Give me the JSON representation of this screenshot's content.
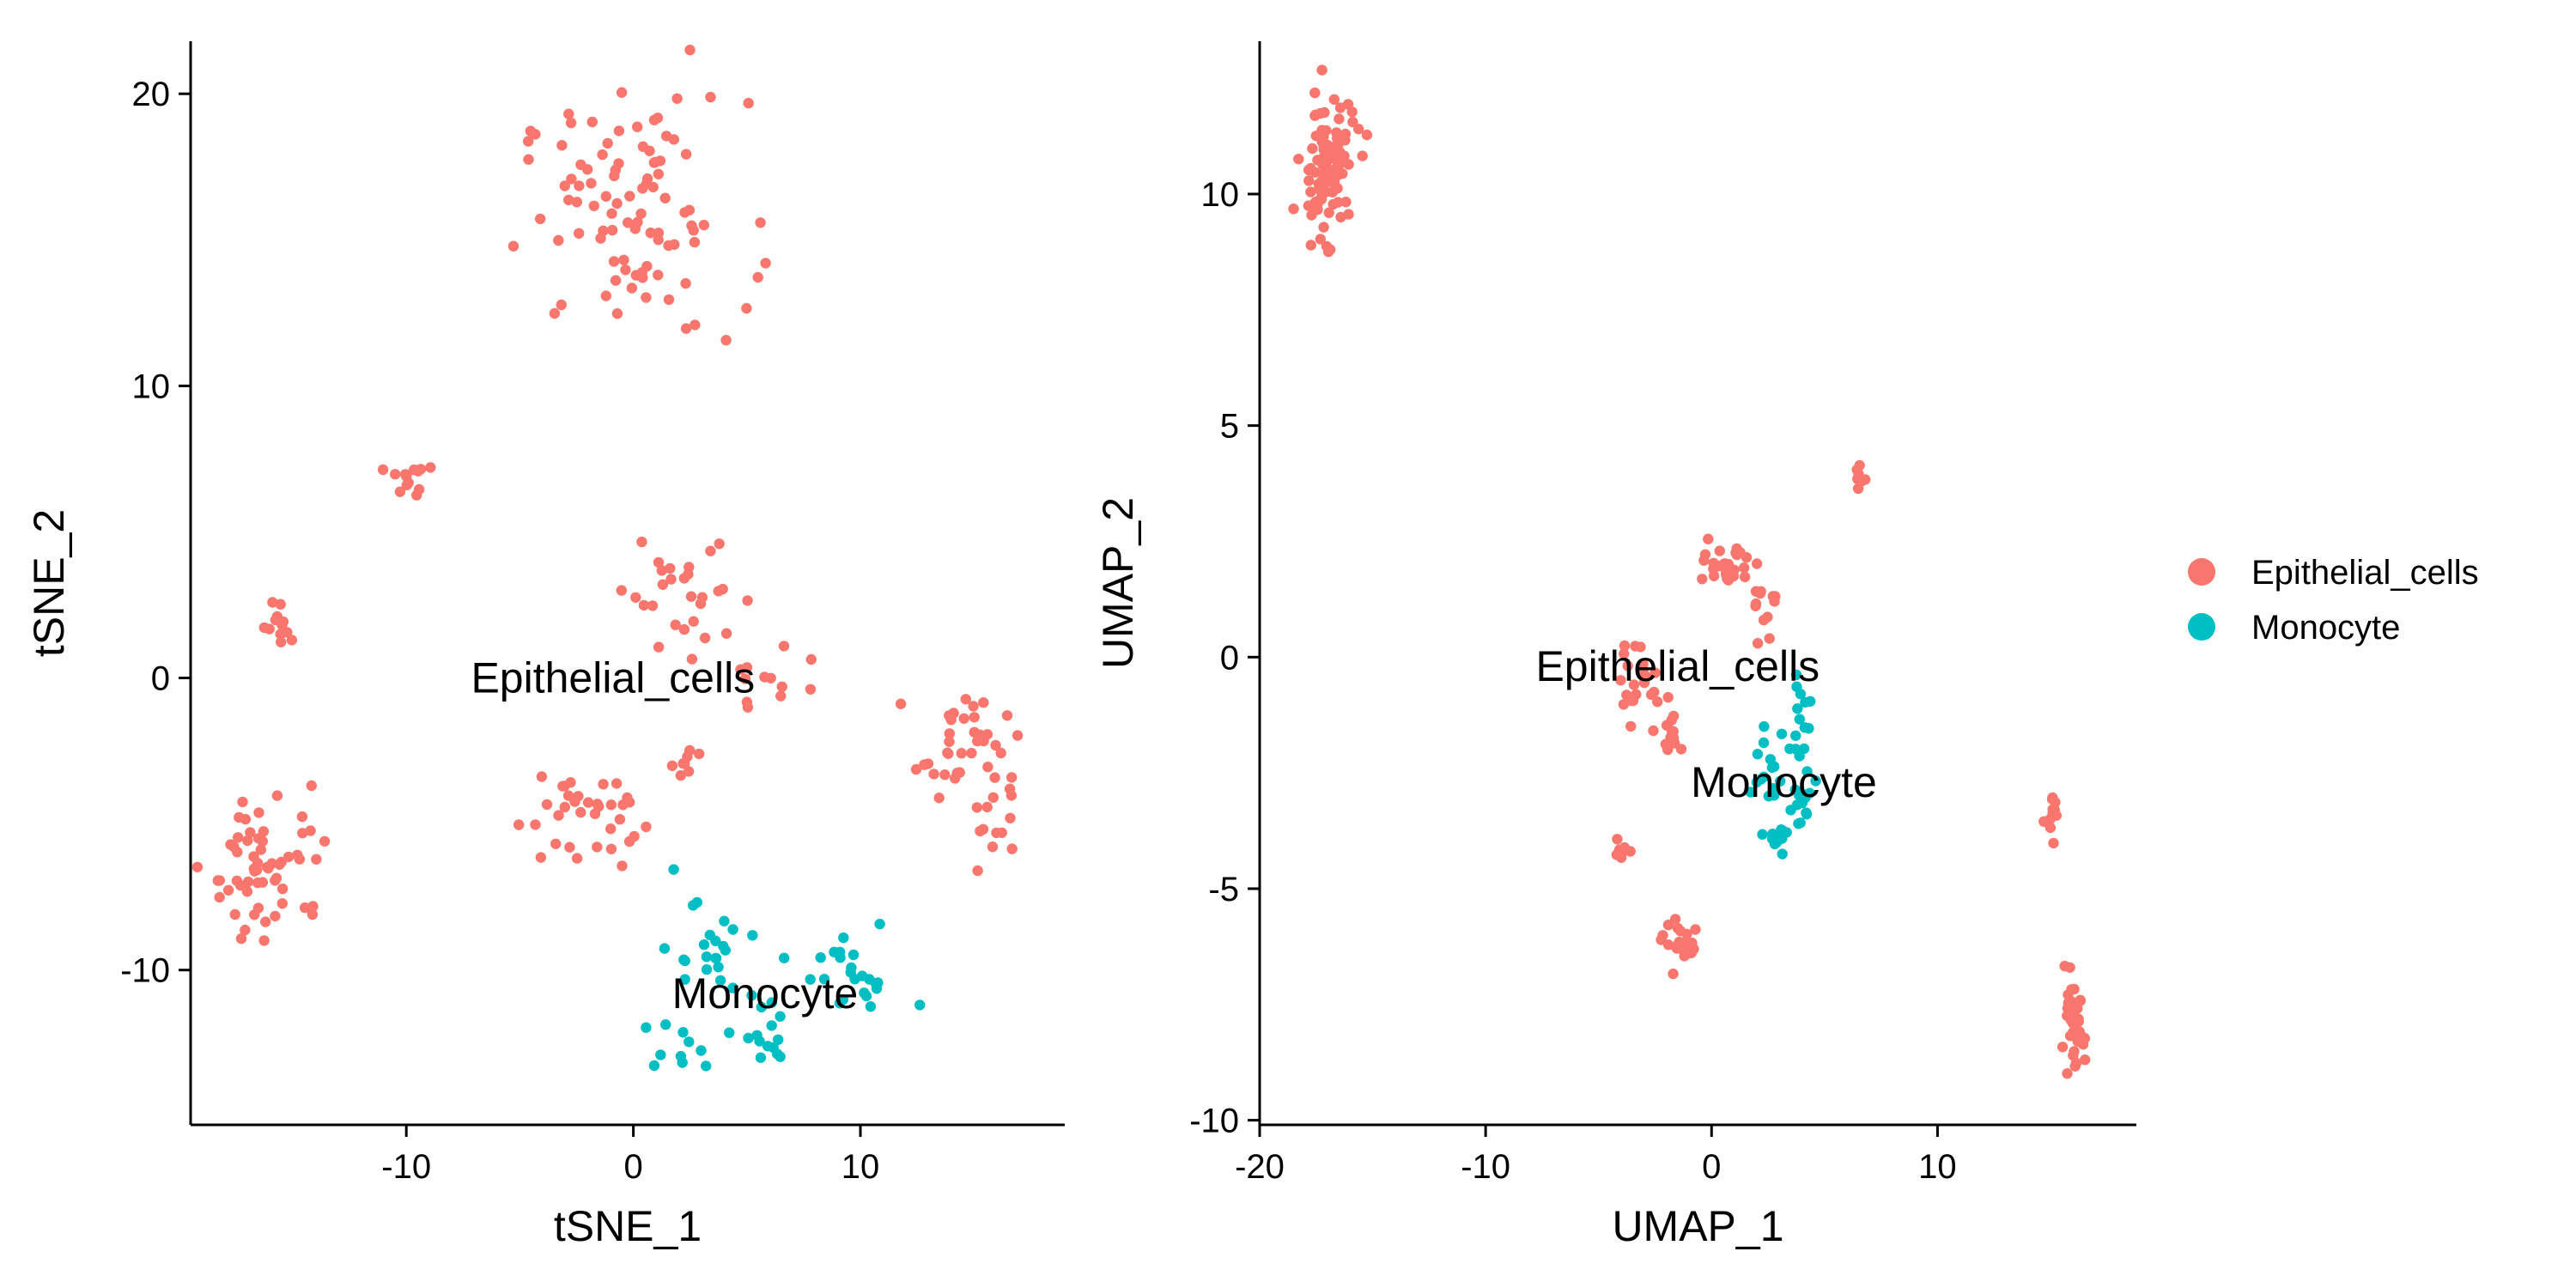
{
  "colors": {
    "Epithelial_cells": "#F8766D",
    "Monocyte": "#00BFC4",
    "axis": "#000000"
  },
  "legend": {
    "items": [
      {
        "label": "Epithelial_cells",
        "color": "#F8766D"
      },
      {
        "label": "Monocyte",
        "color": "#00BFC4"
      }
    ]
  },
  "chart_data": [
    {
      "type": "scatter",
      "id": "tsne",
      "xlabel": "tSNE_1",
      "ylabel": "tSNE_2",
      "xlim": [
        -19.5,
        19.0
      ],
      "ylim": [
        -15.3,
        21.8
      ],
      "xticks": [
        -10,
        0,
        10
      ],
      "yticks": [
        -10,
        0,
        10,
        20
      ],
      "grid": false,
      "cluster_labels": [
        {
          "text": "Epithelial_cells",
          "x": -0.9,
          "y": 0.0
        },
        {
          "text": "Monocyte",
          "x": 5.8,
          "y": -10.8
        }
      ],
      "clusters": [
        {
          "group": "Epithelial_cells",
          "cx": 0.0,
          "cy": 15.8,
          "sx": 2.5,
          "sy": 2.0,
          "n": 95
        },
        {
          "group": "Epithelial_cells",
          "cx": -10.0,
          "cy": 6.8,
          "sx": 0.4,
          "sy": 0.35,
          "n": 14
        },
        {
          "group": "Epithelial_cells",
          "cx": -15.5,
          "cy": 1.8,
          "sx": 0.4,
          "sy": 0.4,
          "n": 12
        },
        {
          "group": "Epithelial_cells",
          "cx": -16.0,
          "cy": -6.3,
          "sx": 1.3,
          "sy": 1.3,
          "n": 60
        },
        {
          "group": "Epithelial_cells",
          "cx": 2.5,
          "cy": 3.2,
          "sx": 1.5,
          "sy": 1.3,
          "n": 28
        },
        {
          "group": "Epithelial_cells",
          "cx": 6.0,
          "cy": -0.2,
          "sx": 0.9,
          "sy": 0.7,
          "n": 12
        },
        {
          "group": "Epithelial_cells",
          "cx": -2.5,
          "cy": -4.7,
          "sx": 1.3,
          "sy": 0.9,
          "n": 35
        },
        {
          "group": "Epithelial_cells",
          "cx": 2.2,
          "cy": -2.9,
          "sx": 0.35,
          "sy": 0.3,
          "n": 8
        },
        {
          "group": "Epithelial_cells",
          "cx": 14.5,
          "cy": -2.2,
          "sx": 1.0,
          "sy": 0.8,
          "n": 35
        },
        {
          "group": "Epithelial_cells",
          "cx": 16.0,
          "cy": -5.0,
          "sx": 0.6,
          "sy": 0.8,
          "n": 15
        },
        {
          "group": "Monocyte",
          "cx": 3.0,
          "cy": -9.0,
          "sx": 1.0,
          "sy": 0.9,
          "n": 22
        },
        {
          "group": "Monocyte",
          "cx": 9.5,
          "cy": -10.3,
          "sx": 1.2,
          "sy": 0.8,
          "n": 24
        },
        {
          "group": "Monocyte",
          "cx": 6.2,
          "cy": -12.2,
          "sx": 0.8,
          "sy": 0.8,
          "n": 15
        },
        {
          "group": "Monocyte",
          "cx": 1.3,
          "cy": -12.7,
          "sx": 0.7,
          "sy": 0.5,
          "n": 10
        }
      ]
    },
    {
      "type": "scatter",
      "id": "umap",
      "xlabel": "UMAP_1",
      "ylabel": "UMAP_2",
      "xlim": [
        -20.0,
        18.8
      ],
      "ylim": [
        -10.1,
        13.3
      ],
      "xticks": [
        -20,
        -10,
        0,
        10
      ],
      "yticks": [
        -10,
        -5,
        0,
        5,
        10
      ],
      "grid": false,
      "cluster_labels": [
        {
          "text": "Epithelial_cells",
          "x": -1.5,
          "y": -0.2
        },
        {
          "text": "Monocyte",
          "x": 3.2,
          "y": -2.7
        }
      ],
      "clusters": [
        {
          "group": "Epithelial_cells",
          "cx": -17.0,
          "cy": 10.6,
          "sx": 0.6,
          "sy": 0.7,
          "n": 110
        },
        {
          "group": "Epithelial_cells",
          "cx": 6.5,
          "cy": 3.8,
          "sx": 0.12,
          "sy": 0.18,
          "n": 8
        },
        {
          "group": "Epithelial_cells",
          "cx": 0.7,
          "cy": 2.0,
          "sx": 0.5,
          "sy": 0.25,
          "n": 28
        },
        {
          "group": "Epithelial_cells",
          "cx": 2.4,
          "cy": 1.2,
          "sx": 0.3,
          "sy": 0.3,
          "n": 12
        },
        {
          "group": "Epithelial_cells",
          "cx": -3.2,
          "cy": -0.7,
          "sx": 0.45,
          "sy": 0.5,
          "n": 22
        },
        {
          "group": "Epithelial_cells",
          "cx": -1.7,
          "cy": -1.5,
          "sx": 0.3,
          "sy": 0.3,
          "n": 12
        },
        {
          "group": "Epithelial_cells",
          "cx": -3.9,
          "cy": -4.2,
          "sx": 0.2,
          "sy": 0.18,
          "n": 8
        },
        {
          "group": "Epithelial_cells",
          "cx": -1.3,
          "cy": -6.2,
          "sx": 0.4,
          "sy": 0.25,
          "n": 24
        },
        {
          "group": "Epithelial_cells",
          "cx": 15.0,
          "cy": -3.5,
          "sx": 0.17,
          "sy": 0.22,
          "n": 12
        },
        {
          "group": "Epithelial_cells",
          "cx": 16.0,
          "cy": -8.1,
          "sx": 0.25,
          "sy": 0.5,
          "n": 45
        },
        {
          "group": "Monocyte",
          "cx": 4.0,
          "cy": -1.3,
          "sx": 0.25,
          "sy": 0.35,
          "n": 12
        },
        {
          "group": "Monocyte",
          "cx": 2.5,
          "cy": -2.7,
          "sx": 0.6,
          "sy": 0.6,
          "n": 22
        },
        {
          "group": "Monocyte",
          "cx": 4.2,
          "cy": -3.2,
          "sx": 0.3,
          "sy": 0.35,
          "n": 12
        },
        {
          "group": "Monocyte",
          "cx": 2.8,
          "cy": -3.9,
          "sx": 0.2,
          "sy": 0.2,
          "n": 8
        }
      ]
    }
  ]
}
